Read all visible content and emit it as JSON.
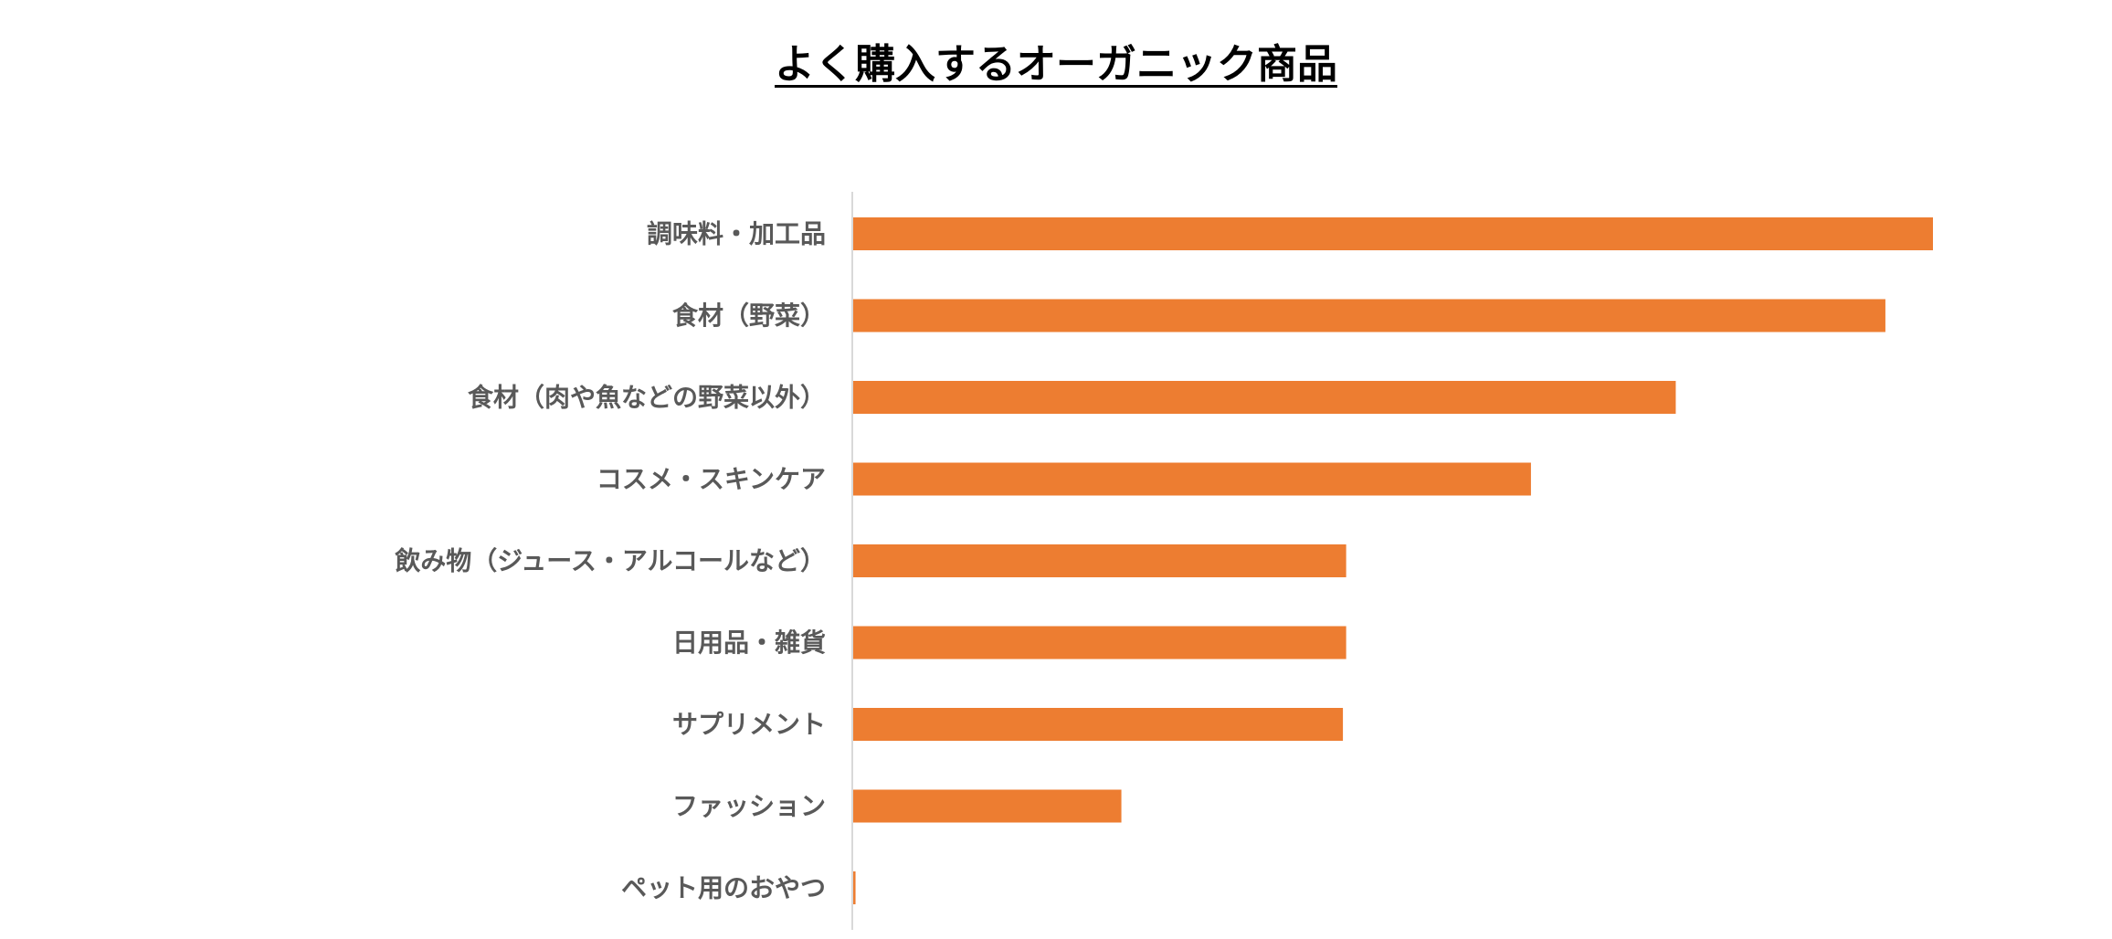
{
  "chart_data": {
    "type": "bar",
    "orientation": "horizontal",
    "title": "よく購入するオーガニック商品",
    "categories": [
      "調味料・加工品",
      "食材（野菜）",
      "食材（肉や魚などの野菜以外）",
      "コスメ・スキンケア",
      "飲み物（ジュース・アルコールなど）",
      "日用品・雑貨",
      "サプリメント",
      "ファッション",
      "ペット用のおやつ"
    ],
    "values": [
      100,
      95.6,
      76.2,
      62.8,
      45.7,
      45.7,
      45.4,
      24.9,
      0.3
    ],
    "xlim": [
      0,
      100
    ],
    "bar_color": "#ED7D31",
    "axis_color": "#D9D9D9",
    "label_color": "#595959",
    "grid": false,
    "legend": "none"
  }
}
